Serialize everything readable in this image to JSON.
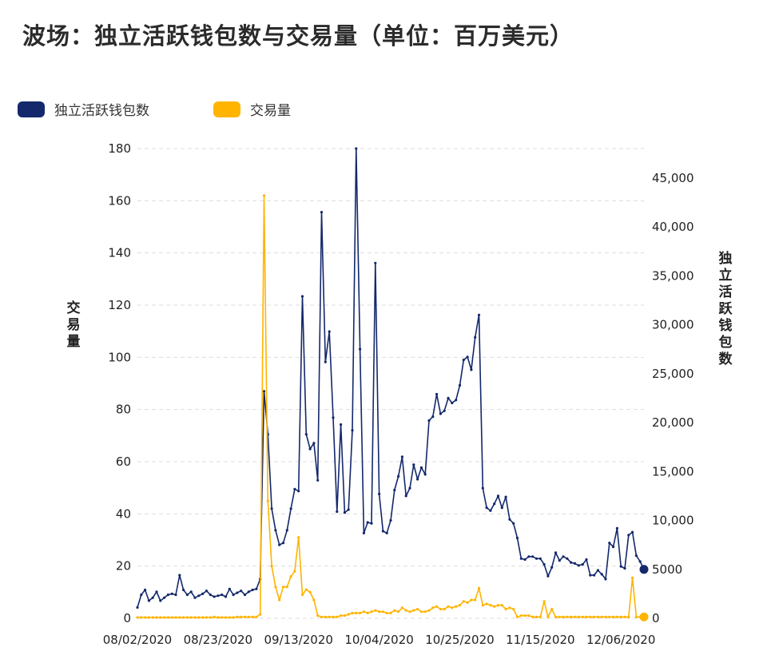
{
  "title": "波场：独立活跃钱包数与交易量（单位：百万美元）",
  "legend": [
    {
      "name": "独立活跃钱包数",
      "color": "#14286b"
    },
    {
      "name": "交易量",
      "color": "#ffb400"
    }
  ],
  "chart_data": {
    "type": "line",
    "title": "波场：独立活跃钱包数与交易量（单位：百万美元）",
    "ylabel_left": "交易量",
    "ylabel_right": "独立活跃钱包数",
    "ylim_left": [
      0,
      180
    ],
    "ylim_right": [
      0,
      48000
    ],
    "yticks_left": [
      0,
      20,
      40,
      60,
      80,
      100,
      120,
      140,
      160,
      180
    ],
    "yticks_right": [
      0,
      5000,
      10000,
      15000,
      20000,
      25000,
      30000,
      35000,
      40000,
      45000
    ],
    "ytick_labels_right": [
      "0",
      "5000",
      "10,000",
      "15,000",
      "20,000",
      "25,000",
      "30,000",
      "35,000",
      "40,000",
      "45,000"
    ],
    "x_tick_labels": [
      "08/02/2020",
      "08/23/2020",
      "09/13/2020",
      "10/04/2020",
      "10/25/2020",
      "11/15/2020",
      "12/06/2020"
    ],
    "x_start_label": "08/02/2020",
    "num_points": 133,
    "grid": "horizontal dashed",
    "legend_position": "top-left",
    "series": [
      {
        "name": "独立活跃钱包数",
        "axis": "right",
        "color": "#14286b",
        "values": [
          1100,
          2400,
          2900,
          1800,
          2100,
          2700,
          1800,
          2100,
          2400,
          2500,
          2400,
          4400,
          2900,
          2400,
          2700,
          2100,
          2300,
          2500,
          2800,
          2400,
          2200,
          2300,
          2400,
          2200,
          3000,
          2400,
          2600,
          2800,
          2400,
          2700,
          2900,
          3000,
          4000,
          23200,
          18800,
          11200,
          9000,
          7500,
          7700,
          9000,
          11200,
          13200,
          13000,
          32900,
          18800,
          17300,
          17900,
          14100,
          41500,
          26200,
          29300,
          20500,
          10900,
          19800,
          10800,
          11100,
          19200,
          48000,
          27500,
          8700,
          9800,
          9700,
          36300,
          12700,
          8900,
          8700,
          10000,
          13100,
          14500,
          16500,
          12500,
          13300,
          15700,
          14200,
          15400,
          14700,
          20200,
          20600,
          22900,
          20900,
          21200,
          22500,
          22000,
          22300,
          23800,
          26400,
          26700,
          25400,
          28700,
          31000,
          13300,
          11300,
          11000,
          11700,
          12500,
          11300,
          12400,
          10100,
          9700,
          8200,
          6100,
          6000,
          6300,
          6300,
          6100,
          6100,
          5500,
          4300,
          5200,
          6700,
          5900,
          6300,
          6100,
          5700,
          5600,
          5400,
          5500,
          6000,
          4400,
          4400,
          4900,
          4500,
          4000,
          7700,
          7300,
          9200,
          5300,
          5100,
          8500,
          8800,
          6400,
          5800,
          5000
        ]
      },
      {
        "name": "交易量",
        "axis": "left",
        "color": "#ffb400",
        "values": [
          0.3,
          0.3,
          0.3,
          0.3,
          0.3,
          0.3,
          0.3,
          0.3,
          0.3,
          0.3,
          0.3,
          0.3,
          0.3,
          0.3,
          0.3,
          0.3,
          0.3,
          0.3,
          0.3,
          0.3,
          0.5,
          0.3,
          0.3,
          0.3,
          0.3,
          0.3,
          0.5,
          0.5,
          0.5,
          0.5,
          0.5,
          0.5,
          1.5,
          162,
          45,
          20,
          12,
          7,
          12,
          12,
          16,
          18,
          31,
          9,
          11,
          10,
          7,
          1,
          0.5,
          0.5,
          0.5,
          0.5,
          0.5,
          1,
          1,
          1.5,
          2,
          2,
          2,
          2.5,
          2,
          2.5,
          3,
          2.5,
          2.5,
          2,
          2,
          3,
          2.5,
          4,
          3,
          2.5,
          3,
          3.5,
          2.5,
          2.5,
          3,
          4,
          4.5,
          3.5,
          3.5,
          4.5,
          4,
          4.5,
          5,
          6.5,
          6,
          7,
          7,
          11.5,
          5,
          5.5,
          5,
          4.5,
          5,
          5,
          3.5,
          4,
          3.5,
          0.5,
          1,
          1,
          1,
          0.5,
          0.5,
          0.5,
          6.5,
          0.5,
          3.5,
          0.5,
          0.5,
          0.5,
          0.5,
          0.5,
          0.5,
          0.5,
          0.5,
          0.5,
          0.5,
          0.5,
          0.5,
          0.5,
          0.5,
          0.5,
          0.5,
          0.5,
          0.5,
          0.5,
          0.5,
          15.5,
          0.5,
          0.5,
          0.5
        ]
      }
    ]
  }
}
